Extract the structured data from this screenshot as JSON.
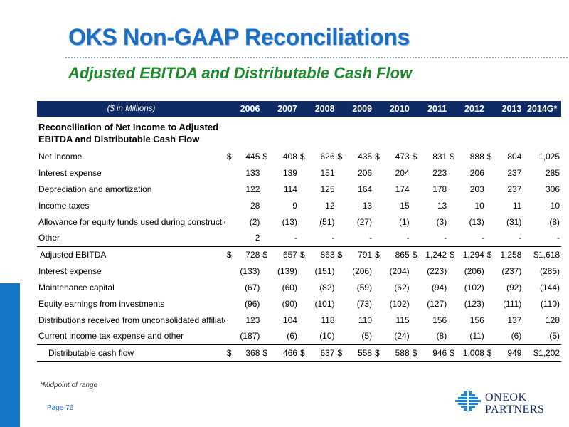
{
  "header": {
    "title": "OKS Non-GAAP Reconciliations",
    "subtitle": "Adjusted EBITDA and Distributable Cash Flow"
  },
  "table": {
    "units_label": "($ in Millions)",
    "years": [
      "2006",
      "2007",
      "2008",
      "2009",
      "2010",
      "2011",
      "2012",
      "2013",
      "2014G*"
    ],
    "section_title_line1": "Reconciliation of Net Income to  Adjusted",
    "section_title_line2": "EBITDA and Distributable Cash Flow",
    "rows": [
      {
        "label": "Net Income",
        "values": [
          "$",
          "445",
          "$",
          "408",
          "$",
          "626",
          "$",
          "435",
          "$",
          "473",
          "$",
          "831",
          "$",
          "888",
          "$",
          "804",
          "",
          "1,025"
        ]
      },
      {
        "label": "Interest expense",
        "values": [
          "",
          "133",
          "",
          "139",
          "",
          "151",
          "",
          "206",
          "",
          "204",
          "",
          "223",
          "",
          "206",
          "",
          "237",
          "",
          "285"
        ]
      },
      {
        "label": "Depreciation and amortization",
        "values": [
          "",
          "122",
          "",
          "114",
          "",
          "125",
          "",
          "164",
          "",
          "174",
          "",
          "178",
          "",
          "203",
          "",
          "237",
          "",
          "306"
        ]
      },
      {
        "label": "Income taxes",
        "values": [
          "",
          "28",
          "",
          "9",
          "",
          "12",
          "",
          "13",
          "",
          "15",
          "",
          "13",
          "",
          "10",
          "",
          "11",
          "",
          "10"
        ]
      },
      {
        "label": "Allowance for equity funds used during construction",
        "values": [
          "",
          "(2)",
          "",
          "(13)",
          "",
          "(51)",
          "",
          "(27)",
          "",
          "(1)",
          "",
          "(3)",
          "",
          "(13)",
          "",
          "(31)",
          "",
          "(8)"
        ]
      },
      {
        "label": "Other",
        "values": [
          "",
          "2",
          "",
          "-",
          "",
          "-",
          "",
          "-",
          "",
          "-",
          "",
          "-",
          "",
          "-",
          "",
          "-",
          "",
          "-"
        ]
      },
      {
        "label": "Adjusted EBITDA",
        "values": [
          "$",
          "728",
          "$",
          "657",
          "$",
          "863",
          "$",
          "791",
          "$",
          "865",
          "$",
          "1,242",
          "$",
          "1,294",
          "$",
          "1,258",
          "",
          "$1,618"
        ]
      },
      {
        "label": "Interest expense",
        "values": [
          "",
          "(133)",
          "",
          "(139)",
          "",
          "(151)",
          "",
          "(206)",
          "",
          "(204)",
          "",
          "(223)",
          "",
          "(206)",
          "",
          "(237)",
          "",
          "(285)"
        ]
      },
      {
        "label": "Maintenance capital",
        "values": [
          "",
          "(67)",
          "",
          "(60)",
          "",
          "(82)",
          "",
          "(59)",
          "",
          "(62)",
          "",
          "(94)",
          "",
          "(102)",
          "",
          "(92)",
          "",
          "(144)"
        ]
      },
      {
        "label": "Equity earnings from investments",
        "values": [
          "",
          "(96)",
          "",
          "(90)",
          "",
          "(101)",
          "",
          "(73)",
          "",
          "(102)",
          "",
          "(127)",
          "",
          "(123)",
          "",
          "(111)",
          "",
          "(110)"
        ]
      },
      {
        "label": "Distributions received from unconsolidated affiliates",
        "values": [
          "",
          "123",
          "",
          "104",
          "",
          "118",
          "",
          "110",
          "",
          "115",
          "",
          "156",
          "",
          "156",
          "",
          "137",
          "",
          "128"
        ]
      },
      {
        "label": "Current income tax expense and other",
        "values": [
          "",
          "(187)",
          "",
          "(6)",
          "",
          "(10)",
          "",
          "(5)",
          "",
          "(24)",
          "",
          "(8)",
          "",
          "(11)",
          "",
          "(6)",
          "",
          "(5)"
        ]
      },
      {
        "label": "Distributable cash flow",
        "values": [
          "$",
          "368",
          "$",
          "466",
          "$",
          "637",
          "$",
          "558",
          "$",
          "588",
          "$",
          "946",
          "$",
          "1,008",
          "$",
          "949",
          "",
          "$1,202"
        ]
      }
    ]
  },
  "footer": {
    "footnote": "*Midpoint of range",
    "page": "Page 76",
    "logo_line1": "ONEOK",
    "logo_line2": "PARTNERS"
  },
  "colors": {
    "title": "#1a6fc4",
    "subtitle": "#1f8a2a",
    "header_bar": "#0e2b63",
    "accent": "#1476c8"
  }
}
